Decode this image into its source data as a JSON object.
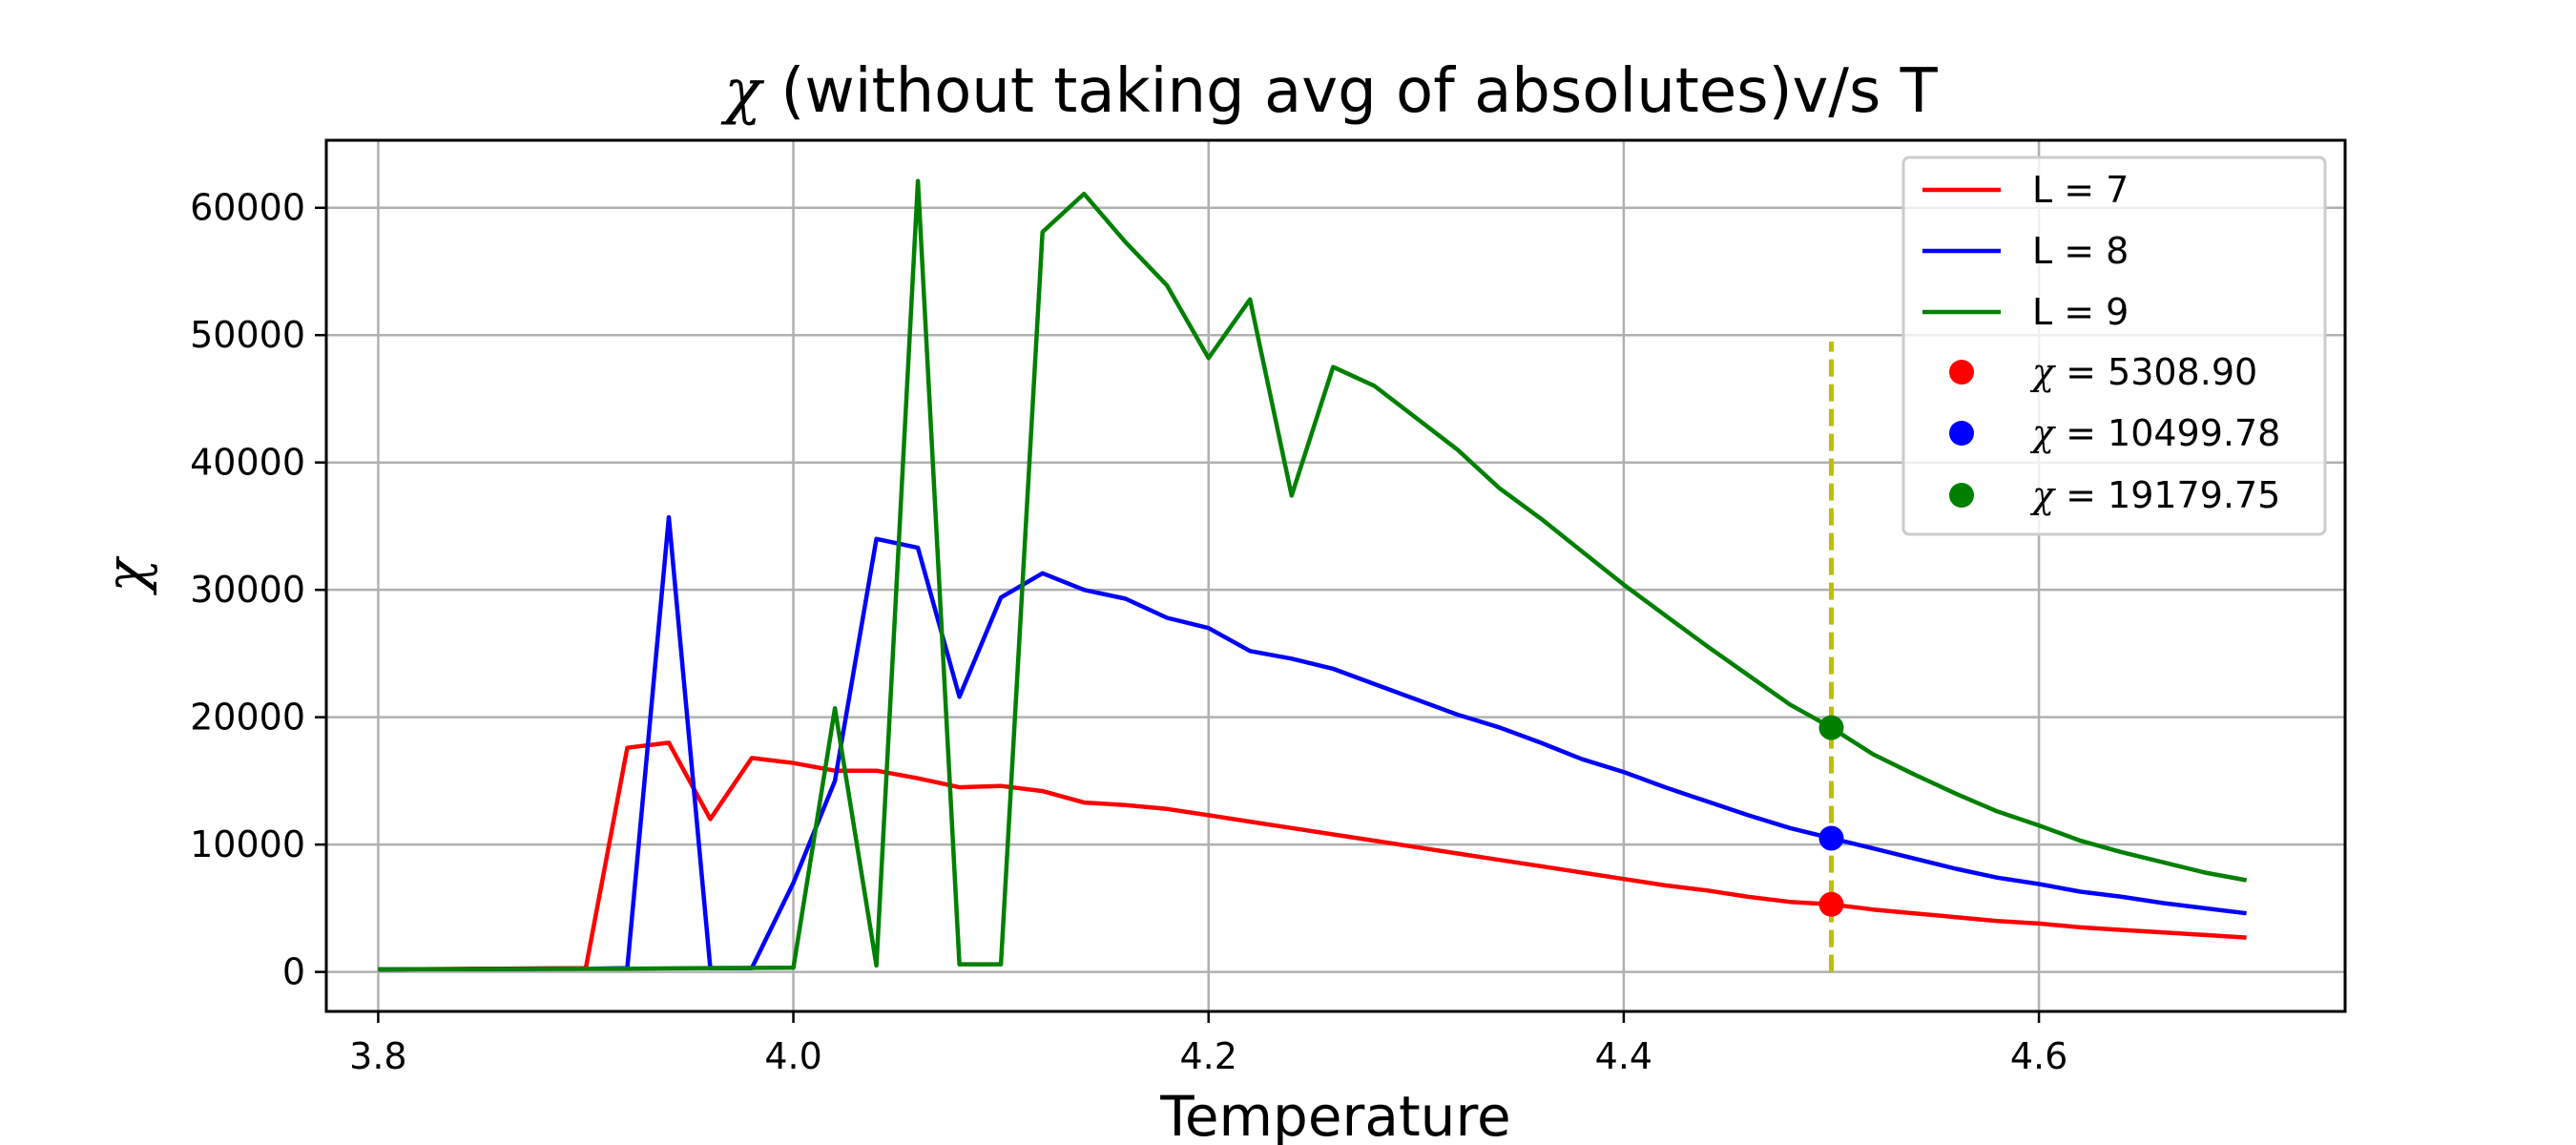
{
  "chart_data": {
    "type": "line",
    "title_symbol": "χ",
    "title": " (without taking avg of absolutes)v/s T",
    "xlabel": "Temperature",
    "ylabel": "χ",
    "xlim": [
      3.775,
      4.7475
    ],
    "ylim": [
      -3100,
      65300
    ],
    "xticks": [
      3.8,
      4.0,
      4.2,
      4.4,
      4.6
    ],
    "xtick_labels": [
      "3.8",
      "4.0",
      "4.2",
      "4.4",
      "4.6"
    ],
    "yticks": [
      0,
      10000,
      20000,
      30000,
      40000,
      50000,
      60000
    ],
    "ytick_labels": [
      "0",
      "10000",
      "20000",
      "30000",
      "40000",
      "50000",
      "60000"
    ],
    "grid": true,
    "legend_position": "top-right",
    "x": [
      3.8,
      3.82,
      3.84,
      3.86,
      3.88,
      3.9,
      3.92,
      3.94,
      3.96,
      3.98,
      4.0,
      4.02,
      4.04,
      4.06,
      4.08,
      4.1,
      4.12,
      4.14,
      4.16,
      4.18,
      4.2,
      4.22,
      4.24,
      4.26,
      4.28,
      4.3,
      4.32,
      4.34,
      4.36,
      4.38,
      4.4,
      4.42,
      4.44,
      4.46,
      4.48,
      4.5,
      4.52,
      4.54,
      4.56,
      4.58,
      4.6,
      4.62,
      4.64,
      4.66,
      4.68,
      4.7
    ],
    "series": [
      {
        "name": "L = 7",
        "color": "#ff0000",
        "values": [
          200,
          220,
          240,
          260,
          280,
          300,
          17600,
          18000,
          12000,
          16800,
          16400,
          15800,
          15800,
          15200,
          14500,
          14600,
          14200,
          13300,
          13100,
          12800,
          12300,
          11800,
          11300,
          10800,
          10300,
          9800,
          9300,
          8800,
          8300,
          7800,
          7300,
          6800,
          6400,
          5900,
          5500,
          5309,
          4900,
          4600,
          4300,
          4000,
          3800,
          3500,
          3300,
          3100,
          2900,
          2700
        ]
      },
      {
        "name": "L = 8",
        "color": "#0000ff",
        "values": [
          200,
          210,
          220,
          230,
          240,
          250,
          300,
          35700,
          300,
          300,
          7000,
          15000,
          34000,
          33300,
          21600,
          29400,
          31300,
          30000,
          29300,
          27800,
          27000,
          25200,
          24600,
          23800,
          22600,
          21400,
          20200,
          19200,
          18000,
          16700,
          15700,
          14500,
          13400,
          12300,
          11300,
          10500,
          9700,
          8900,
          8100,
          7400,
          6900,
          6300,
          5900,
          5400,
          5000,
          4600
        ]
      },
      {
        "name": "L = 9",
        "color": "#008000",
        "values": [
          200,
          210,
          220,
          230,
          240,
          250,
          260,
          280,
          300,
          320,
          340,
          20700,
          500,
          62100,
          600,
          600,
          58100,
          61100,
          57300,
          53900,
          48200,
          52800,
          37400,
          47500,
          46000,
          43500,
          41000,
          38000,
          35600,
          33000,
          30400,
          28000,
          25600,
          23300,
          21000,
          19180,
          17100,
          15500,
          14000,
          12600,
          11500,
          10300,
          9400,
          8600,
          7800,
          7200
        ]
      }
    ],
    "marker_line": {
      "x": 4.5,
      "ymin": 0,
      "ymax": 49500,
      "color": "#bfbf00"
    },
    "markers": [
      {
        "label_symbol": "χ",
        "label": "=  5308.90",
        "x": 4.5,
        "y": 5308.9,
        "color": "#ff0000"
      },
      {
        "label_symbol": "χ",
        "label": "=  10499.78",
        "x": 4.5,
        "y": 10499.78,
        "color": "#0000ff"
      },
      {
        "label_symbol": "χ",
        "label": "=  19179.75",
        "x": 4.5,
        "y": 19179.75,
        "color": "#008000"
      }
    ]
  }
}
